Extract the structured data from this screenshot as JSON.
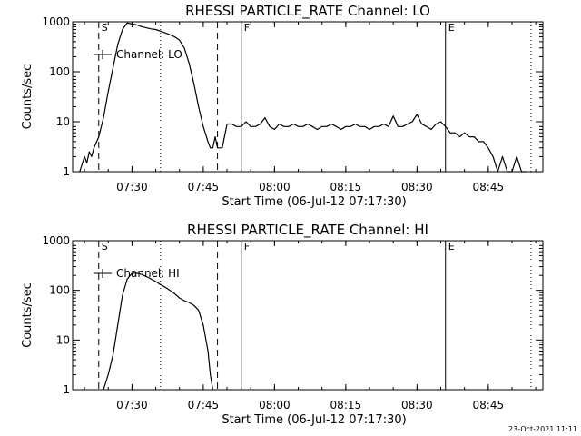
{
  "footer_date": "23-Oct-2021 11:11",
  "chart_data": [
    {
      "type": "line",
      "title": "RHESSI PARTICLE_RATE Channel: LO",
      "xlabel": "Start Time (06-Jul-12 07:17:30)",
      "ylabel": "Counts/sec",
      "yscale": "log",
      "ylim": [
        1,
        1000
      ],
      "xlim": [
        "07:17:30",
        "08:56:30"
      ],
      "x_ticks": [
        "07:30",
        "07:45",
        "08:00",
        "08:15",
        "08:30",
        "08:45"
      ],
      "y_ticks": [
        "1",
        "10",
        "100",
        "1000"
      ],
      "grid": false,
      "legend": {
        "location": "upper-left",
        "entries": [
          "Channel: LO"
        ]
      },
      "markers": [
        {
          "label": "S",
          "time": "07:23",
          "style": "dashed"
        },
        {
          "label": "",
          "time": "07:36",
          "style": "dotted"
        },
        {
          "label": "",
          "time": "07:48",
          "style": "dashed"
        },
        {
          "label": "F",
          "time": "07:53",
          "style": "solid"
        },
        {
          "label": "E",
          "time": "08:36",
          "style": "solid"
        },
        {
          "label": "",
          "time": "08:54",
          "style": "dotted"
        }
      ],
      "series": [
        {
          "name": "Channel: LO",
          "time": [
            "07:19",
            "07:20",
            "07:20:30",
            "07:21",
            "07:21:30",
            "07:22",
            "07:23",
            "07:24",
            "07:25",
            "07:26",
            "07:27",
            "07:28",
            "07:29",
            "07:30",
            "07:31",
            "07:32",
            "07:33",
            "07:34",
            "07:35",
            "07:36",
            "07:37",
            "07:38",
            "07:39",
            "07:40",
            "07:41",
            "07:42",
            "07:43",
            "07:44",
            "07:45",
            "07:46",
            "07:46:30",
            "07:47",
            "07:47:30",
            "07:48",
            "07:49",
            "07:50",
            "07:51",
            "07:52",
            "07:53",
            "07:54",
            "07:55",
            "07:56",
            "07:57",
            "07:58",
            "07:59",
            "08:00",
            "08:01",
            "08:02",
            "08:03",
            "08:04",
            "08:05",
            "08:06",
            "08:07",
            "08:08",
            "08:09",
            "08:10",
            "08:11",
            "08:12",
            "08:13",
            "08:14",
            "08:15",
            "08:16",
            "08:17",
            "08:18",
            "08:19",
            "08:20",
            "08:21",
            "08:22",
            "08:23",
            "08:24",
            "08:25",
            "08:26",
            "08:27",
            "08:28",
            "08:29",
            "08:30",
            "08:31",
            "08:32",
            "08:33",
            "08:34",
            "08:35",
            "08:36",
            "08:37",
            "08:38",
            "08:39",
            "08:40",
            "08:41",
            "08:42",
            "08:43",
            "08:44",
            "08:45",
            "08:46",
            "08:47",
            "08:48",
            "08:49",
            "08:50",
            "08:51",
            "08:52",
            "08:53"
          ],
          "values": [
            1,
            2,
            1.5,
            2.5,
            2,
            3,
            5,
            12,
            40,
            120,
            350,
            700,
            950,
            900,
            870,
            800,
            760,
            720,
            700,
            650,
            600,
            550,
            500,
            430,
            300,
            150,
            60,
            20,
            8,
            4,
            3,
            3,
            5,
            3,
            3,
            9,
            9,
            8,
            8,
            10,
            8,
            8,
            9,
            12,
            8,
            7,
            9,
            8,
            8,
            9,
            8,
            8,
            9,
            8,
            7,
            8,
            8,
            9,
            8,
            7,
            8,
            8,
            9,
            8,
            8,
            7,
            8,
            8,
            9,
            8,
            13,
            8,
            8,
            9,
            10,
            14,
            9,
            8,
            7,
            9,
            10,
            8,
            6,
            6,
            5,
            6,
            5,
            5,
            4,
            4,
            3,
            2,
            1,
            2,
            1,
            1,
            2,
            1,
            1
          ]
        }
      ]
    },
    {
      "type": "line",
      "title": "RHESSI PARTICLE_RATE Channel: HI",
      "xlabel": "Start Time (06-Jul-12 07:17:30)",
      "ylabel": "Counts/sec",
      "yscale": "log",
      "ylim": [
        1,
        1000
      ],
      "xlim": [
        "07:17:30",
        "08:56:30"
      ],
      "x_ticks": [
        "07:30",
        "07:45",
        "08:00",
        "08:15",
        "08:30",
        "08:45"
      ],
      "y_ticks": [
        "1",
        "10",
        "100",
        "1000"
      ],
      "grid": false,
      "legend": {
        "location": "upper-left",
        "entries": [
          "Channel: HI"
        ]
      },
      "markers": [
        {
          "label": "S",
          "time": "07:23",
          "style": "dashed"
        },
        {
          "label": "",
          "time": "07:36",
          "style": "dotted"
        },
        {
          "label": "",
          "time": "07:48",
          "style": "dashed"
        },
        {
          "label": "F",
          "time": "07:53",
          "style": "solid"
        },
        {
          "label": "E",
          "time": "08:36",
          "style": "solid"
        },
        {
          "label": "",
          "time": "08:54",
          "style": "dotted"
        }
      ],
      "series": [
        {
          "name": "Channel: HI",
          "time": [
            "07:24",
            "07:25",
            "07:26",
            "07:27",
            "07:28",
            "07:29",
            "07:30",
            "07:31",
            "07:32",
            "07:33",
            "07:34",
            "07:35",
            "07:36",
            "07:37",
            "07:38",
            "07:39",
            "07:40",
            "07:41",
            "07:42",
            "07:43",
            "07:44",
            "07:45",
            "07:46",
            "07:46:30",
            "07:47"
          ],
          "values": [
            1,
            2,
            5,
            20,
            80,
            170,
            220,
            220,
            210,
            190,
            170,
            150,
            130,
            115,
            100,
            85,
            70,
            62,
            57,
            50,
            40,
            20,
            6,
            2,
            1
          ]
        }
      ]
    }
  ]
}
